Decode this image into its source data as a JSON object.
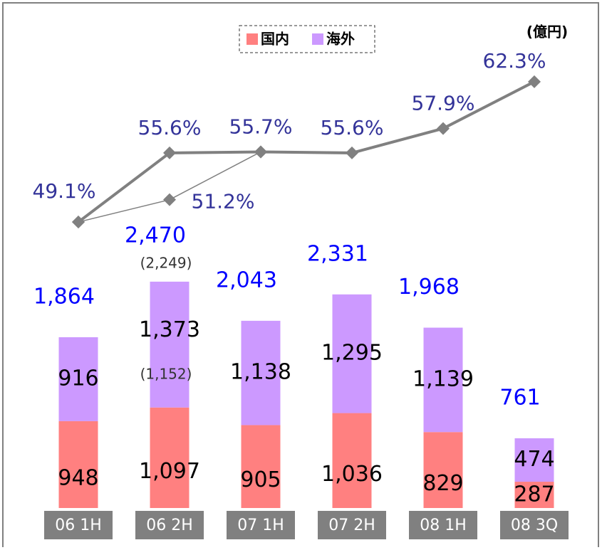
{
  "chart_data": {
    "type": "bar",
    "stacked": true,
    "categories": [
      "06 1H",
      "06 2H",
      "07 1H",
      "07 2H",
      "08 1H",
      "08 3Q"
    ],
    "series": [
      {
        "name": "国内",
        "color": "#ff8080",
        "values": [
          948,
          1097,
          905,
          1036,
          829,
          287
        ],
        "value_labels": [
          "948",
          "1,097",
          "905",
          "1,036",
          "829",
          "287"
        ]
      },
      {
        "name": "海外",
        "color": "#cc99ff",
        "values": [
          916,
          1373,
          1138,
          1295,
          1139,
          474
        ],
        "value_labels": [
          "916",
          "1,373",
          "1,138",
          "1,295",
          "1,139",
          "474"
        ]
      }
    ],
    "totals": {
      "values": [
        1864,
        2470,
        2043,
        2331,
        1968,
        761
      ],
      "value_labels": [
        "1,864",
        "2,470",
        "2,043",
        "2,331",
        "1,968",
        "761"
      ],
      "color": "#0000ff"
    },
    "lines": [
      {
        "axis": "y2",
        "color": "#808080",
        "width": 4,
        "values": [
          49.1,
          55.6,
          55.7,
          55.6,
          57.9,
          62.3
        ],
        "value_labels": [
          "49.1%",
          "55.6%",
          "55.7%",
          "55.6%",
          "57.9%",
          "62.3%"
        ]
      },
      {
        "axis": "y2",
        "color": "#808080",
        "width": 1.5,
        "values": [
          49.1,
          51.2,
          55.7,
          null,
          null,
          null
        ],
        "value_labels": [
          null,
          "51.2%",
          null,
          null,
          null,
          null
        ]
      }
    ],
    "annotations": [
      "(2,249)",
      "(1,152)"
    ],
    "unit": "(億円)",
    "ylim": [
      0,
      5000
    ],
    "y2lim": [
      22.2,
      65.3
    ],
    "legend": "top"
  }
}
